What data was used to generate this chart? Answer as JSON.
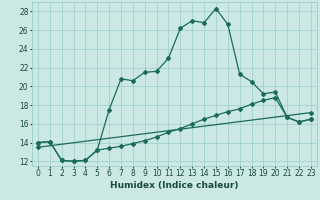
{
  "xlabel": "Humidex (Indice chaleur)",
  "xlim": [
    -0.5,
    23.5
  ],
  "ylim": [
    11.5,
    29.0
  ],
  "yticks": [
    12,
    14,
    16,
    18,
    20,
    22,
    24,
    26,
    28
  ],
  "xticks": [
    0,
    1,
    2,
    3,
    4,
    5,
    6,
    7,
    8,
    9,
    10,
    11,
    12,
    13,
    14,
    15,
    16,
    17,
    18,
    19,
    20,
    21,
    22,
    23
  ],
  "bg_color": "#cce8e4",
  "grid_color": "#99cccc",
  "line_color": "#1a6b5a",
  "line1_x": [
    0,
    1,
    2,
    3,
    4,
    5,
    6,
    7,
    8,
    9,
    10,
    11,
    12,
    13,
    14,
    15,
    16,
    17,
    18,
    19,
    20,
    21,
    22,
    23
  ],
  "line1_y": [
    14.0,
    14.1,
    12.1,
    12.0,
    12.1,
    13.2,
    17.5,
    20.8,
    20.6,
    21.5,
    21.6,
    23.0,
    26.2,
    27.0,
    26.8,
    28.3,
    26.6,
    21.3,
    20.5,
    19.2,
    19.4,
    16.7,
    16.2,
    16.5
  ],
  "line2_x": [
    0,
    1,
    2,
    3,
    4,
    5,
    6,
    7,
    8,
    9,
    10,
    11,
    12,
    13,
    14,
    15,
    16,
    17,
    18,
    19,
    20,
    21,
    22,
    23
  ],
  "line2_y": [
    14.0,
    14.1,
    12.1,
    12.0,
    12.1,
    13.2,
    13.4,
    13.6,
    13.9,
    14.2,
    14.6,
    15.1,
    15.5,
    16.0,
    16.5,
    16.9,
    17.3,
    17.6,
    18.1,
    18.5,
    18.8,
    16.7,
    16.2,
    16.5
  ],
  "line3_x": [
    0,
    23
  ],
  "line3_y": [
    13.5,
    17.2
  ],
  "marker": "D",
  "markersize": 2.0,
  "linewidth": 0.9,
  "xlabel_fontsize": 6.5,
  "tick_fontsize": 5.5
}
